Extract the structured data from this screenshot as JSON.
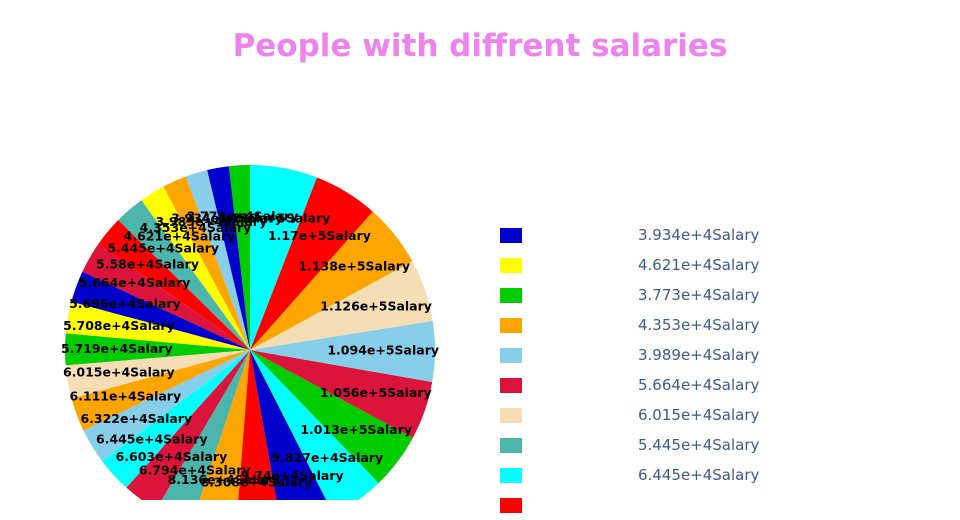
{
  "title": {
    "text": "People with diffrent salaries",
    "color": "#ee82ee"
  },
  "chart_data": {
    "type": "pie",
    "title": "People with diffrent salaries",
    "start_angle": 90,
    "direction": "counterclockwise",
    "label_distance": 0.72,
    "label_color": "#000000",
    "legend_position": "right",
    "legend_text_color": "#3d5a8f",
    "slices": [
      {
        "label": "3.773e+4Salary",
        "value": 37730,
        "color": "#00cc00"
      },
      {
        "label": "3.934e+4Salary",
        "value": 39340,
        "color": "#0000cd"
      },
      {
        "label": "3.989e+4Salary",
        "value": 39890,
        "color": "#87ceeb"
      },
      {
        "label": "4.353e+4Salary",
        "value": 43530,
        "color": "#ffa500"
      },
      {
        "label": "4.621e+4Salary",
        "value": 46210,
        "color": "#ffff00"
      },
      {
        "label": "5.445e+4Salary",
        "value": 54450,
        "color": "#4db6ac"
      },
      {
        "label": "5.58e+4Salary",
        "value": 55800,
        "color": "#ff0000"
      },
      {
        "label": "5.664e+4Salary",
        "value": 56640,
        "color": "#dc143c"
      },
      {
        "label": "5.696e+4Salary",
        "value": 56960,
        "color": "#0000cd"
      },
      {
        "label": "5.708e+4Salary",
        "value": 57080,
        "color": "#ffff00"
      },
      {
        "label": "5.719e+4Salary",
        "value": 57190,
        "color": "#00cc00"
      },
      {
        "label": "6.015e+4Salary",
        "value": 60150,
        "color": "#f5deb3"
      },
      {
        "label": "6.111e+4Salary",
        "value": 61110,
        "color": "#ffa500"
      },
      {
        "label": "6.322e+4Salary",
        "value": 63220,
        "color": "#87ceeb"
      },
      {
        "label": "6.445e+4Salary",
        "value": 64450,
        "color": "#00ffff"
      },
      {
        "label": "6.603e+4Salary",
        "value": 66030,
        "color": "#dc143c"
      },
      {
        "label": "6.794e+4Salary",
        "value": 67940,
        "color": "#4db6ac"
      },
      {
        "label": "8.136e+4Salary",
        "value": 81360,
        "color": "#ffa500"
      },
      {
        "label": "8.308e+4Salary",
        "value": 83080,
        "color": "#ff0000"
      },
      {
        "label": "9.74e+4Salary",
        "value": 97400,
        "color": "#0000cd"
      },
      {
        "label": "9.827e+4Salary",
        "value": 98270,
        "color": "#00ffff"
      },
      {
        "label": "1.013e+5Salary",
        "value": 101300,
        "color": "#00cc00"
      },
      {
        "label": "1.056e+5Salary",
        "value": 105600,
        "color": "#dc143c"
      },
      {
        "label": "1.094e+5Salary",
        "value": 109400,
        "color": "#87ceeb"
      },
      {
        "label": "1.126e+5Salary",
        "value": 112600,
        "color": "#f5deb3"
      },
      {
        "label": "1.138e+5Salary",
        "value": 113800,
        "color": "#ffa500"
      },
      {
        "label": "1.17e+5Salary",
        "value": 117000,
        "color": "#ff0000"
      },
      {
        "label": "1.219e+5Salary",
        "value": 121900,
        "color": "#00ffff"
      }
    ],
    "legend": {
      "items": [
        {
          "label": "3.934e+4Salary",
          "color": "#0000cd"
        },
        {
          "label": "4.621e+4Salary",
          "color": "#ffff00"
        },
        {
          "label": "3.773e+4Salary",
          "color": "#00cc00"
        },
        {
          "label": "4.353e+4Salary",
          "color": "#ffa500"
        },
        {
          "label": "3.989e+4Salary",
          "color": "#87ceeb"
        },
        {
          "label": "5.664e+4Salary",
          "color": "#dc143c"
        },
        {
          "label": "6.015e+4Salary",
          "color": "#f5deb3"
        },
        {
          "label": "5.445e+4Salary",
          "color": "#4db6ac"
        },
        {
          "label": "6.445e+4Salary",
          "color": "#00ffff"
        },
        {
          "label": "",
          "color": "#ff0000"
        }
      ]
    }
  }
}
